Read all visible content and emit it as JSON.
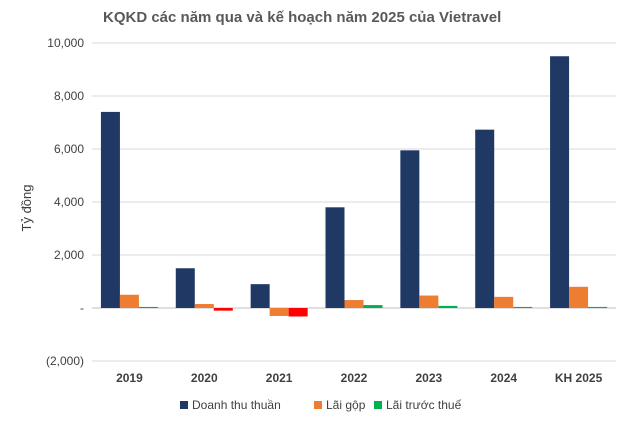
{
  "chart_data": {
    "type": "bar",
    "title": "KQKD các năm qua và kế hoạch năm 2025 của Vietravel",
    "ylabel": "Tỷ đồng",
    "xlabel": "",
    "categories": [
      "2019",
      "2020",
      "2021",
      "2022",
      "2023",
      "2024",
      "KH 2025"
    ],
    "ylim": [
      -2000,
      10000
    ],
    "yticks": [
      -2000,
      0,
      2000,
      4000,
      6000,
      8000,
      10000
    ],
    "ytick_labels": [
      "(2,000)",
      "-",
      "2,000",
      "4,000",
      "6,000",
      "8,000",
      "10,000"
    ],
    "grid": true,
    "legend_position": "bottom",
    "series": [
      {
        "name": "Doanh thu thuần",
        "color": "#1f3864",
        "values": [
          7400,
          1500,
          900,
          3800,
          5950,
          6730,
          9500
        ]
      },
      {
        "name": "Lãi gộp",
        "color": "#ed7d31",
        "values": [
          500,
          150,
          -300,
          300,
          470,
          420,
          800
        ]
      },
      {
        "name": "Lãi trước thuế",
        "color": "#00b050",
        "values": [
          40,
          -100,
          -320,
          110,
          80,
          40,
          40
        ],
        "negative_color": "#ff0000"
      }
    ]
  }
}
